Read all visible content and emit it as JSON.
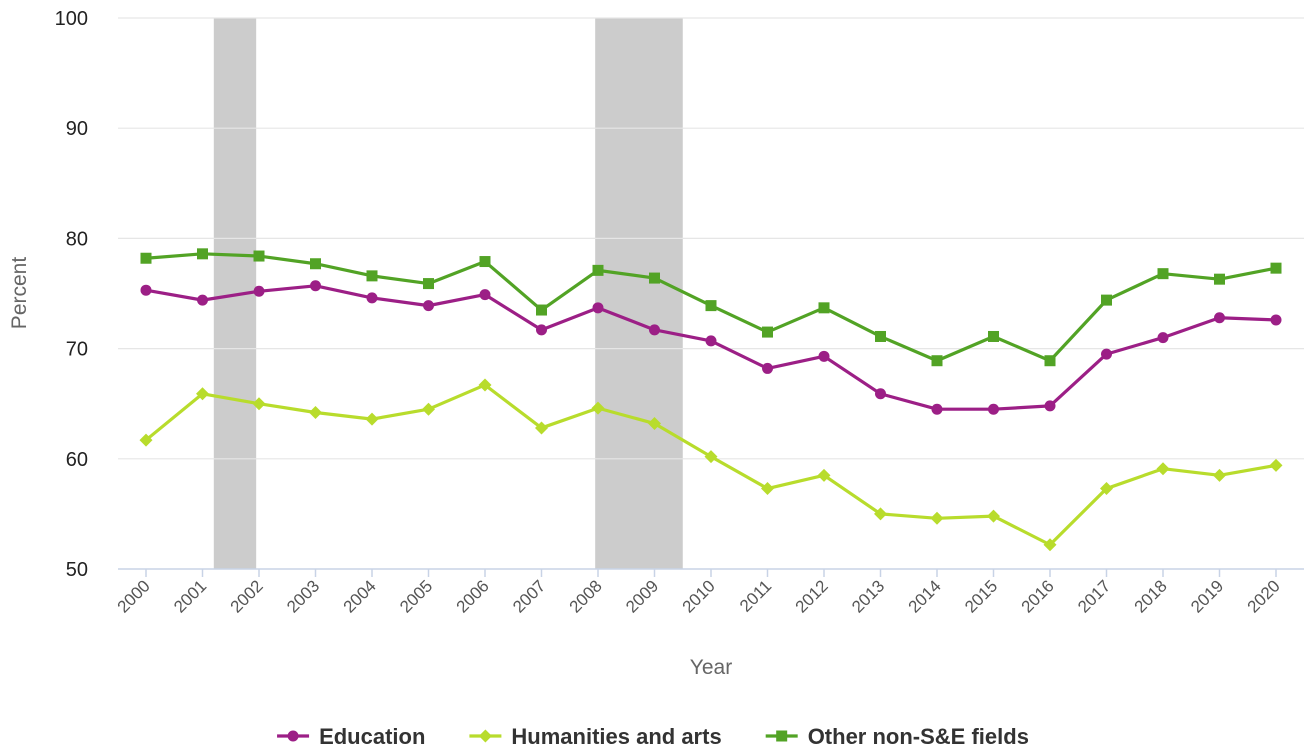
{
  "chart_data": {
    "type": "line",
    "xlabel": "Year",
    "ylabel": "Percent",
    "ylim": [
      50,
      100
    ],
    "yticks": [
      50,
      60,
      70,
      80,
      90,
      100
    ],
    "grid": true,
    "legend_position": "bottom",
    "x": [
      "2000",
      "2001",
      "2002",
      "2003",
      "2004",
      "2005",
      "2006",
      "2007",
      "2008",
      "2009",
      "2010",
      "2011",
      "2012",
      "2013",
      "2014",
      "2015",
      "2016",
      "2017",
      "2018",
      "2019",
      "2020"
    ],
    "shaded_periods": [
      {
        "start": 2001.2,
        "end": 2001.95
      },
      {
        "start": 2007.95,
        "end": 2009.5
      }
    ],
    "series": [
      {
        "name": "Education",
        "color": "#9c1f86",
        "marker": "circle",
        "values": [
          75.3,
          74.4,
          75.2,
          75.7,
          74.6,
          73.9,
          74.9,
          71.7,
          73.7,
          71.7,
          70.7,
          68.2,
          69.3,
          65.9,
          64.5,
          64.5,
          64.8,
          69.5,
          71.0,
          72.8,
          72.6
        ]
      },
      {
        "name": "Humanities and arts",
        "color": "#b8dc2c",
        "marker": "diamond",
        "values": [
          61.7,
          65.9,
          65.0,
          64.2,
          63.6,
          64.5,
          66.7,
          62.8,
          64.6,
          63.2,
          60.2,
          57.3,
          58.5,
          55.0,
          54.6,
          54.8,
          52.2,
          57.3,
          59.1,
          58.5,
          59.4
        ]
      },
      {
        "name": "Other non-S&E fields",
        "color": "#52a325",
        "marker": "square",
        "values": [
          78.2,
          78.6,
          78.4,
          77.7,
          76.6,
          75.9,
          77.9,
          73.5,
          77.1,
          76.4,
          73.9,
          71.5,
          73.7,
          71.1,
          68.9,
          71.1,
          68.9,
          74.4,
          76.8,
          76.3,
          77.3
        ]
      }
    ]
  }
}
